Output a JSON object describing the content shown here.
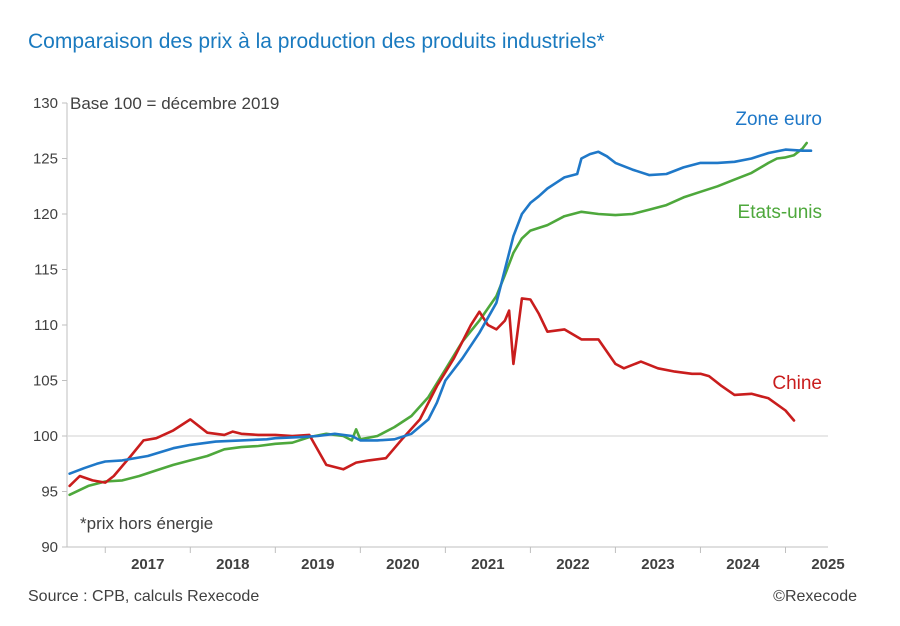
{
  "title": "Comparaison des prix à la production des produits industriels*",
  "source": "Source : CPB, calculs Rexecode",
  "credit": "©Rexecode",
  "chart_data": {
    "type": "line",
    "base_note": "Base 100 = décembre 2019",
    "footnote": "*prix hors énergie",
    "ylim": [
      90,
      130
    ],
    "yticks": [
      90,
      95,
      100,
      105,
      110,
      115,
      120,
      125,
      130
    ],
    "xlim": [
      2016.55,
      2025.5
    ],
    "xticks": [
      "2017",
      "2018",
      "2019",
      "2020",
      "2021",
      "2022",
      "2023",
      "2024",
      "2025"
    ],
    "grid": false,
    "reference_line": 100,
    "series": [
      {
        "name": "Zone euro",
        "color": "#1f78c8",
        "x": [
          2016.58,
          2016.75,
          2016.9,
          2017.0,
          2017.2,
          2017.5,
          2017.8,
          2018.0,
          2018.3,
          2018.6,
          2018.9,
          2019.0,
          2019.3,
          2019.5,
          2019.7,
          2019.9,
          2020.0,
          2020.2,
          2020.4,
          2020.6,
          2020.8,
          2020.9,
          2021.0,
          2021.2,
          2021.4,
          2021.6,
          2021.7,
          2021.8,
          2021.9,
          2022.0,
          2022.1,
          2022.2,
          2022.3,
          2022.4,
          2022.55,
          2022.6,
          2022.7,
          2022.8,
          2022.9,
          2023.0,
          2023.2,
          2023.4,
          2023.6,
          2023.8,
          2024.0,
          2024.2,
          2024.4,
          2024.6,
          2024.8,
          2025.0,
          2025.2,
          2025.3
        ],
        "y": [
          96.6,
          97.1,
          97.5,
          97.7,
          97.8,
          98.2,
          98.9,
          99.2,
          99.5,
          99.6,
          99.7,
          99.8,
          99.9,
          100.0,
          100.2,
          100.0,
          99.6,
          99.6,
          99.7,
          100.2,
          101.5,
          103.0,
          105.0,
          107.0,
          109.3,
          112.0,
          115.0,
          118.0,
          120.0,
          121.0,
          121.6,
          122.3,
          122.8,
          123.3,
          123.6,
          125.0,
          125.4,
          125.6,
          125.2,
          124.6,
          124.0,
          123.5,
          123.6,
          124.2,
          124.6,
          124.6,
          124.7,
          125.0,
          125.5,
          125.8,
          125.7,
          125.7
        ]
      },
      {
        "name": "Etats-unis",
        "color": "#4ea83c",
        "x": [
          2016.58,
          2016.8,
          2017.0,
          2017.2,
          2017.4,
          2017.6,
          2017.8,
          2018.0,
          2018.2,
          2018.4,
          2018.6,
          2018.8,
          2019.0,
          2019.2,
          2019.4,
          2019.6,
          2019.8,
          2019.9,
          2019.95,
          2020.0,
          2020.2,
          2020.4,
          2020.6,
          2020.8,
          2021.0,
          2021.2,
          2021.4,
          2021.6,
          2021.7,
          2021.8,
          2021.9,
          2022.0,
          2022.2,
          2022.4,
          2022.6,
          2022.8,
          2023.0,
          2023.2,
          2023.4,
          2023.6,
          2023.8,
          2024.0,
          2024.2,
          2024.4,
          2024.6,
          2024.8,
          2024.9,
          2025.0,
          2025.1,
          2025.2,
          2025.25
        ],
        "y": [
          94.7,
          95.5,
          95.9,
          96.0,
          96.4,
          96.9,
          97.4,
          97.8,
          98.2,
          98.8,
          99.0,
          99.1,
          99.3,
          99.4,
          99.9,
          100.2,
          100.0,
          99.6,
          100.6,
          99.7,
          100.0,
          100.8,
          101.8,
          103.5,
          106.0,
          108.5,
          110.4,
          112.6,
          114.5,
          116.5,
          117.8,
          118.5,
          119.0,
          119.8,
          120.2,
          120.0,
          119.9,
          120.0,
          120.4,
          120.8,
          121.5,
          122.0,
          122.5,
          123.1,
          123.7,
          124.6,
          125.0,
          125.1,
          125.3,
          125.9,
          126.4
        ]
      },
      {
        "name": "Chine",
        "color": "#c91d1d",
        "x": [
          2016.58,
          2016.7,
          2016.85,
          2017.0,
          2017.1,
          2017.3,
          2017.45,
          2017.6,
          2017.8,
          2018.0,
          2018.2,
          2018.4,
          2018.5,
          2018.6,
          2018.8,
          2019.0,
          2019.2,
          2019.4,
          2019.6,
          2019.8,
          2019.95,
          2020.1,
          2020.3,
          2020.5,
          2020.7,
          2020.9,
          2021.1,
          2021.3,
          2021.4,
          2021.5,
          2021.6,
          2021.7,
          2021.75,
          2021.8,
          2021.9,
          2022.0,
          2022.1,
          2022.2,
          2022.4,
          2022.6,
          2022.8,
          2023.0,
          2023.1,
          2023.3,
          2023.5,
          2023.7,
          2023.9,
          2024.0,
          2024.1,
          2024.25,
          2024.4,
          2024.6,
          2024.8,
          2025.0,
          2025.1
        ],
        "y": [
          95.5,
          96.4,
          96.0,
          95.8,
          96.4,
          98.2,
          99.6,
          99.8,
          100.5,
          101.5,
          100.3,
          100.1,
          100.4,
          100.2,
          100.1,
          100.1,
          100.0,
          100.1,
          97.4,
          97.0,
          97.6,
          97.8,
          98.0,
          99.8,
          101.5,
          104.5,
          107.0,
          110.0,
          111.2,
          110.0,
          109.6,
          110.4,
          111.3,
          106.5,
          112.4,
          112.3,
          111.0,
          109.4,
          109.6,
          108.7,
          108.7,
          106.5,
          106.1,
          106.7,
          106.1,
          105.8,
          105.6,
          105.6,
          105.4,
          104.5,
          103.7,
          103.8,
          103.4,
          102.3,
          101.4
        ]
      }
    ]
  }
}
